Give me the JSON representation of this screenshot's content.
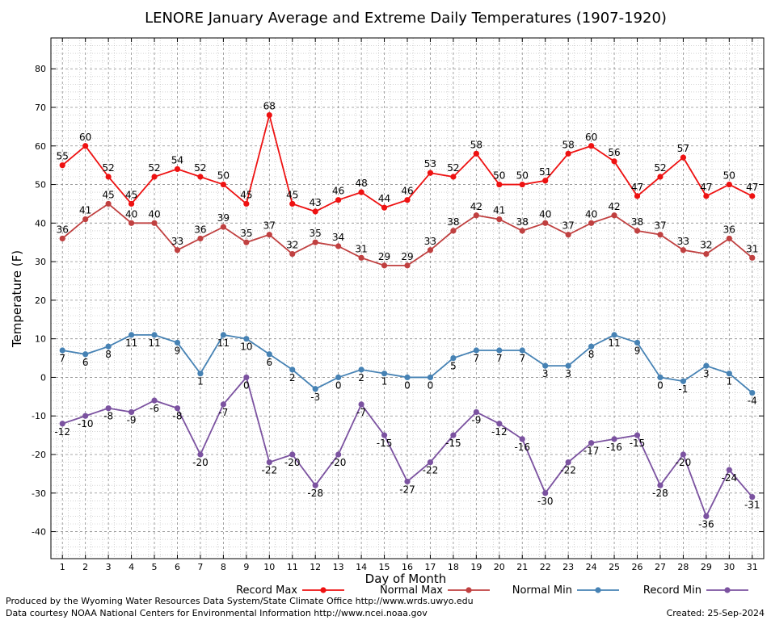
{
  "chart_data": {
    "type": "line",
    "title": "LENORE January Average and Extreme Daily Temperatures (1907-1920)",
    "xlabel": "Day of Month",
    "ylabel": "Temperature (F)",
    "x": [
      1,
      2,
      3,
      4,
      5,
      6,
      7,
      8,
      9,
      10,
      11,
      12,
      13,
      14,
      15,
      16,
      17,
      18,
      19,
      20,
      21,
      22,
      23,
      24,
      25,
      26,
      27,
      28,
      29,
      30,
      31
    ],
    "xlim": [
      0.5,
      31.5
    ],
    "ylim": [
      -47,
      88
    ],
    "yticks": [
      -40,
      -30,
      -20,
      -10,
      0,
      10,
      20,
      30,
      40,
      50,
      60,
      70,
      80
    ],
    "grid": true,
    "legend_position": "bottom",
    "series": [
      {
        "name": "Record Max",
        "color": "#ee1111",
        "label_pos": "above",
        "values": [
          55,
          60,
          52,
          45,
          52,
          54,
          52,
          50,
          45,
          68,
          45,
          43,
          46,
          48,
          44,
          46,
          53,
          52,
          58,
          50,
          50,
          51,
          58,
          60,
          56,
          47,
          52,
          57,
          47,
          50,
          47
        ]
      },
      {
        "name": "Normal Max",
        "color": "#c04040",
        "label_pos": "above",
        "values": [
          36,
          41,
          45,
          40,
          40,
          33,
          36,
          39,
          35,
          37,
          32,
          35,
          34,
          31,
          29,
          29,
          33,
          38,
          42,
          41,
          38,
          40,
          37,
          40,
          42,
          38,
          37,
          33,
          32,
          36,
          31
        ]
      },
      {
        "name": "Normal Min",
        "color": "#4682b4",
        "label_pos": "below",
        "values": [
          7,
          6,
          8,
          11,
          11,
          9,
          1,
          11,
          10,
          6,
          2,
          -3,
          0,
          2,
          1,
          0,
          0,
          5,
          7,
          7,
          7,
          3,
          3,
          8,
          11,
          9,
          0,
          -1,
          3,
          1,
          -4
        ]
      },
      {
        "name": "Record Min",
        "color": "#7b52a0",
        "label_pos": "below",
        "values": [
          -12,
          -10,
          -8,
          -9,
          -6,
          -8,
          -20,
          -7,
          0,
          -22,
          -20,
          -28,
          -20,
          -7,
          -15,
          -27,
          -22,
          -15,
          -9,
          -12,
          -16,
          -30,
          -22,
          -17,
          -16,
          -15,
          -28,
          -20,
          -36,
          -24,
          -31
        ]
      }
    ]
  },
  "footer": {
    "produced_by": "Produced by the Wyoming Water Resources Data System/State Climate Office http://www.wrds.uwyo.edu",
    "courtesy": "Data courtesy NOAA National Centers for Environmental Information http://www.ncei.noaa.gov",
    "created": "Created:  25-Sep-2024"
  }
}
